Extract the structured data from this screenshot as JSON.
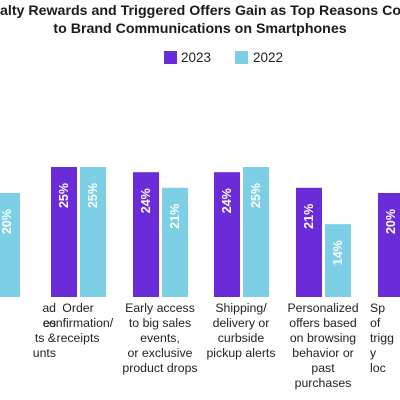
{
  "chart_data": {
    "type": "bar",
    "title_lines": [
      "alty Rewards and Triggered Offers Gain as Top Reasons Cor",
      "to Brand Communications on Smartphones"
    ],
    "categories": [
      [
        "ad",
        "es",
        "ts &",
        "unts"
      ],
      [
        "Order",
        "confirmation/",
        "receipts"
      ],
      [
        "Early access",
        "to big sales",
        "events,",
        "or exclusive",
        "product drops"
      ],
      [
        "Shipping/",
        "delivery or",
        "curbside",
        "pickup alerts"
      ],
      [
        "Personalized",
        "offers based",
        "on browsing",
        "behavior or",
        "past",
        "purchases"
      ],
      [
        "Sp",
        "of",
        "trigg",
        "y",
        "loc"
      ]
    ],
    "series": [
      {
        "name": "2023",
        "color": "#6c2bd9",
        "values": [
          null,
          25,
          24,
          24,
          21,
          20
        ]
      },
      {
        "name": "2022",
        "color": "#7dcfe6",
        "values": [
          20,
          25,
          21,
          25,
          14,
          null
        ]
      }
    ],
    "value_suffix": "%",
    "ylim": [
      0,
      25
    ],
    "legend_position": "top-center",
    "grid": false
  }
}
